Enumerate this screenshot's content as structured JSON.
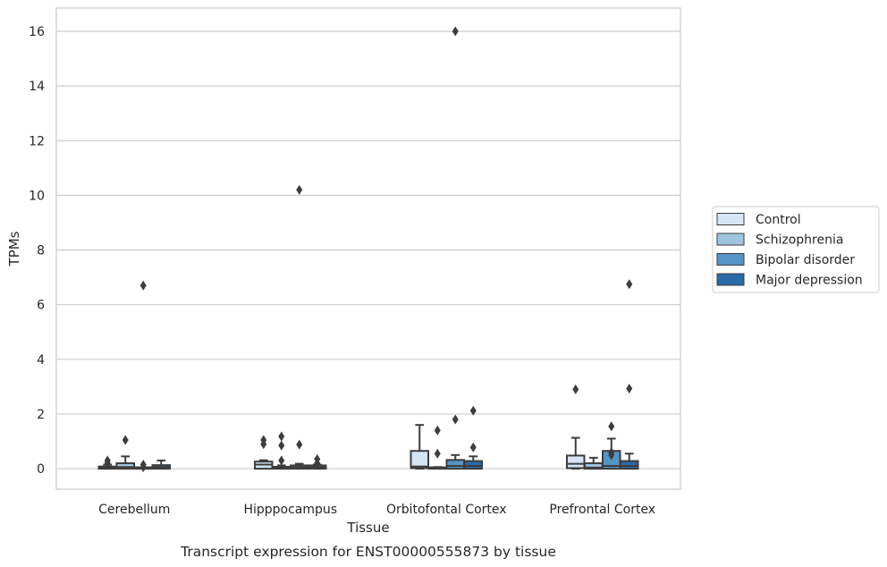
{
  "chart_data": {
    "type": "box",
    "title": "Transcript expression for ENST00000555873 by tissue",
    "xlabel": "Tissue",
    "ylabel": "TPMs",
    "ylim": [
      -0.75,
      16.85
    ],
    "yticks": [
      0,
      2,
      4,
      6,
      8,
      10,
      12,
      14,
      16
    ],
    "grid": "horizontal",
    "legend_position": "right",
    "categories": [
      "Cerebellum",
      "Hipppocampus",
      "Orbitofontal Cortex",
      "Prefrontal Cortex"
    ],
    "series": [
      {
        "name": "Control",
        "color": "#d6e5f3",
        "boxes": [
          {
            "q1": 0.0,
            "median": 0.03,
            "q3": 0.08,
            "whisker_low": 0.0,
            "whisker_high": 0.15,
            "outliers": [
              0.22,
              0.3
            ]
          },
          {
            "q1": 0.0,
            "median": 0.15,
            "q3": 0.26,
            "whisker_low": 0.0,
            "whisker_high": 0.31,
            "outliers": [
              0.9,
              1.05
            ]
          },
          {
            "q1": 0.02,
            "median": 0.08,
            "q3": 0.65,
            "whisker_low": 0.0,
            "whisker_high": 1.6,
            "outliers": []
          },
          {
            "q1": 0.02,
            "median": 0.18,
            "q3": 0.48,
            "whisker_low": 0.0,
            "whisker_high": 1.13,
            "outliers": [
              2.9
            ]
          }
        ]
      },
      {
        "name": "Schizophrenia",
        "color": "#9ec5df",
        "boxes": [
          {
            "q1": 0.0,
            "median": 0.06,
            "q3": 0.2,
            "whisker_low": 0.0,
            "whisker_high": 0.45,
            "outliers": [
              1.05
            ]
          },
          {
            "q1": 0.0,
            "median": 0.03,
            "q3": 0.07,
            "whisker_low": 0.0,
            "whisker_high": 0.12,
            "outliers": [
              0.3,
              0.85,
              1.18
            ]
          },
          {
            "q1": 0.0,
            "median": 0.02,
            "q3": 0.04,
            "whisker_low": 0.0,
            "whisker_high": 0.06,
            "outliers": [
              0.55,
              1.4
            ]
          },
          {
            "q1": 0.0,
            "median": 0.04,
            "q3": 0.2,
            "whisker_low": 0.0,
            "whisker_high": 0.4,
            "outliers": []
          }
        ]
      },
      {
        "name": "Bipolar disorder",
        "color": "#5495c4",
        "boxes": [
          {
            "q1": 0.0,
            "median": 0.02,
            "q3": 0.05,
            "whisker_low": 0.0,
            "whisker_high": 0.05,
            "outliers": [
              0.05,
              0.15,
              6.7
            ]
          },
          {
            "q1": 0.0,
            "median": 0.05,
            "q3": 0.12,
            "whisker_low": 0.0,
            "whisker_high": 0.18,
            "outliers": [
              0.88,
              10.2
            ]
          },
          {
            "q1": 0.0,
            "median": 0.1,
            "q3": 0.32,
            "whisker_low": 0.0,
            "whisker_high": 0.5,
            "outliers": [
              1.8,
              16.0
            ]
          },
          {
            "q1": 0.0,
            "median": 0.1,
            "q3": 0.65,
            "whisker_low": 0.0,
            "whisker_high": 1.1,
            "outliers": [
              0.5,
              0.6,
              1.55
            ]
          }
        ]
      },
      {
        "name": "Major depression",
        "color": "#2a6aa8",
        "boxes": [
          {
            "q1": 0.0,
            "median": 0.05,
            "q3": 0.13,
            "whisker_low": 0.0,
            "whisker_high": 0.3,
            "outliers": []
          },
          {
            "q1": 0.0,
            "median": 0.05,
            "q3": 0.12,
            "whisker_low": 0.0,
            "whisker_high": 0.15,
            "outliers": [
              0.2,
              0.35
            ]
          },
          {
            "q1": 0.0,
            "median": 0.1,
            "q3": 0.28,
            "whisker_low": 0.0,
            "whisker_high": 0.45,
            "outliers": [
              0.78,
              2.12
            ]
          },
          {
            "q1": 0.0,
            "median": 0.1,
            "q3": 0.28,
            "whisker_low": 0.0,
            "whisker_high": 0.55,
            "outliers": [
              2.93,
              6.75
            ]
          }
        ]
      }
    ]
  }
}
